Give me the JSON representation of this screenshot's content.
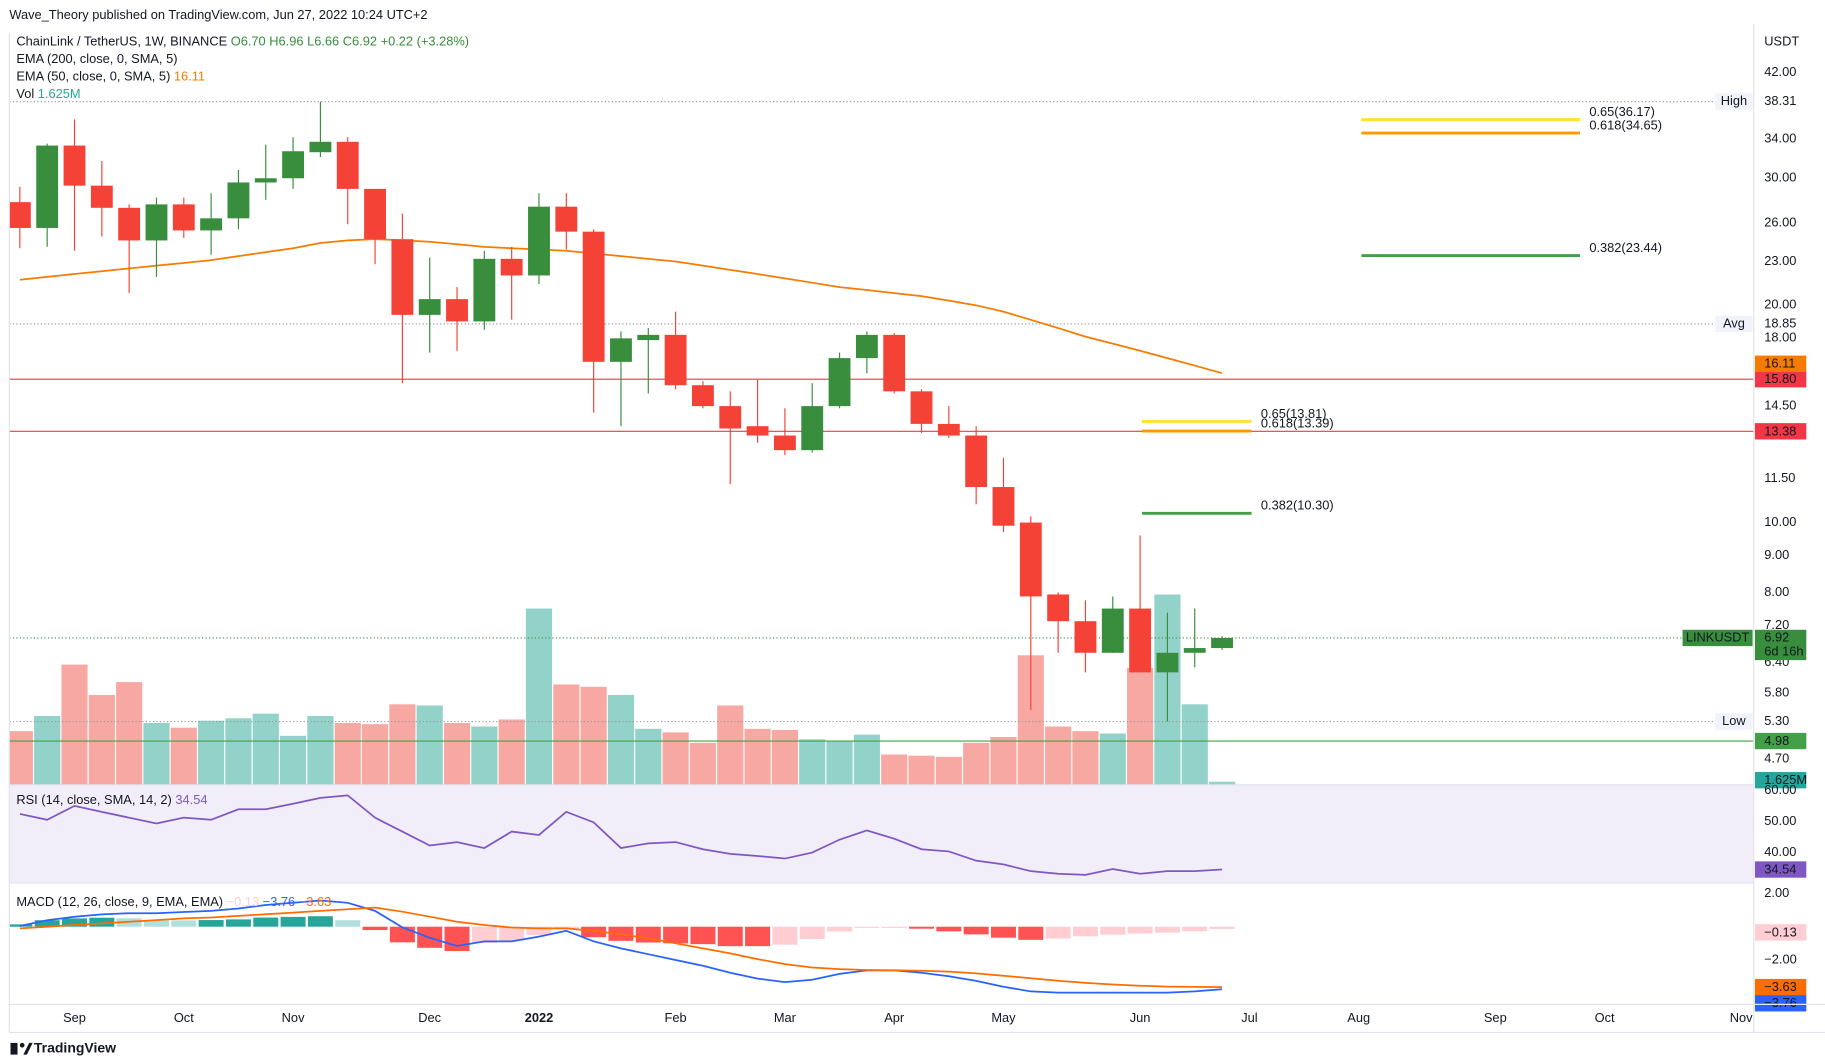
{
  "header": {
    "published": "Wave_Theory published on TradingView.com, Jun 27, 2022 10:24 UTC+2",
    "brand": "TradingView"
  },
  "chart_data": {
    "type": "candlestick",
    "symbol": "ChainLink / TetherUS, 1W, BINANCE",
    "ohlc_text": [
      "O6.70",
      "H6.96",
      "L6.66",
      "C6.92",
      "+0.22 (+3.28%)"
    ],
    "currency": "USDT",
    "categories": [
      null,
      null,
      null,
      null,
      null,
      null,
      null,
      null,
      null,
      null,
      null,
      null,
      null,
      null,
      null,
      null,
      null,
      null,
      null,
      null,
      null,
      null,
      null,
      null,
      null,
      null,
      null,
      null,
      null,
      null,
      null,
      null,
      null,
      null,
      null,
      null,
      null,
      null,
      null,
      null,
      null,
      null,
      null,
      null,
      null
    ],
    "xlim": [
      -0.385,
      63.46
    ],
    "xticks": [
      {
        "value": 2,
        "label": "Sep"
      },
      {
        "value": 6,
        "label": "Oct"
      },
      {
        "value": 10,
        "label": "Nov"
      },
      {
        "value": 15,
        "label": "Dec"
      },
      {
        "value": 19,
        "label": "2022"
      },
      {
        "value": 24,
        "label": "Feb"
      },
      {
        "value": 28,
        "label": "Mar"
      },
      {
        "value": 32,
        "label": "Apr"
      },
      {
        "value": 36,
        "label": "May"
      },
      {
        "value": 41,
        "label": "Jun"
      },
      {
        "value": 45,
        "label": "Jul"
      },
      {
        "value": 49,
        "label": "Aug"
      },
      {
        "value": 54,
        "label": "Sep"
      },
      {
        "value": 58,
        "label": "Oct"
      },
      {
        "value": 63,
        "label": "Nov"
      }
    ],
    "log_scale": true,
    "ylim": [
      4.33,
      47.7
    ],
    "yticks": [
      {
        "value": 42,
        "label": "42.00"
      },
      {
        "value": 34,
        "label": "34.00"
      },
      {
        "value": 30,
        "label": "30.00"
      },
      {
        "value": 26,
        "label": "26.00"
      },
      {
        "value": 23,
        "label": "23.00"
      },
      {
        "value": 20,
        "label": "20.00"
      },
      {
        "value": 18,
        "label": "18.00"
      },
      {
        "value": 14.5,
        "label": "14.50"
      },
      {
        "value": 11.5,
        "label": "11.50"
      },
      {
        "value": 10,
        "label": "10.00"
      },
      {
        "value": 9,
        "label": "9.00"
      },
      {
        "value": 8,
        "label": "8.00"
      },
      {
        "value": 7.2,
        "label": "7.20"
      },
      {
        "value": 6.4,
        "label": "6.40"
      },
      {
        "value": 5.8,
        "label": "5.80"
      },
      {
        "value": 4.7,
        "label": "4.70"
      }
    ],
    "up_color": "#388e3c",
    "down_color": "#f44336",
    "open": [
      27.8,
      25.6,
      33.3,
      29.3,
      27.3,
      24.6,
      27.6,
      25.4,
      26.4,
      29.6,
      30.0,
      32.6,
      33.7,
      29.0,
      24.7,
      19.4,
      20.4,
      19.0,
      23.2,
      22.0,
      27.4,
      25.3,
      16.7,
      17.9,
      18.2,
      15.5,
      14.5,
      13.6,
      13.2,
      12.6,
      14.5,
      16.9,
      18.2,
      15.2,
      13.7,
      13.2,
      11.2,
      10.0,
      7.95,
      7.3,
      6.6,
      7.6,
      6.2,
      6.6,
      6.7
    ],
    "high": [
      29.2,
      33.5,
      36.2,
      31.7,
      27.6,
      28.2,
      28.2,
      28.6,
      30.8,
      33.4,
      34.2,
      38.31,
      34.2,
      29.0,
      26.8,
      23.3,
      21.2,
      23.8,
      24.1,
      28.6,
      28.6,
      25.5,
      18.4,
      18.6,
      19.6,
      15.7,
      15.2,
      15.8,
      14.4,
      15.6,
      17.2,
      18.4,
      18.3,
      15.3,
      14.5,
      13.6,
      12.3,
      10.2,
      8.0,
      7.8,
      7.9,
      9.6,
      7.5,
      7.6,
      6.96
    ],
    "low": [
      24.0,
      24.1,
      23.8,
      24.9,
      20.8,
      21.9,
      24.8,
      23.5,
      25.5,
      28.0,
      29.0,
      32.1,
      25.9,
      22.8,
      15.6,
      17.2,
      17.3,
      18.5,
      19.1,
      21.4,
      23.9,
      14.2,
      13.6,
      15.1,
      15.3,
      14.4,
      11.3,
      12.9,
      12.4,
      12.5,
      14.4,
      16.1,
      15.1,
      13.3,
      13.1,
      10.6,
      9.7,
      5.5,
      6.6,
      6.2,
      6.6,
      6.2,
      5.3,
      6.3,
      6.66
    ],
    "close": [
      25.6,
      33.3,
      29.3,
      27.3,
      24.6,
      27.6,
      25.4,
      26.4,
      29.6,
      30.0,
      32.7,
      33.7,
      29.0,
      24.7,
      19.4,
      20.4,
      19.0,
      23.2,
      22.0,
      27.4,
      25.3,
      16.7,
      18.0,
      18.2,
      15.5,
      14.5,
      13.5,
      13.2,
      12.6,
      14.5,
      16.9,
      18.2,
      15.2,
      13.7,
      13.2,
      11.2,
      9.9,
      7.9,
      7.3,
      6.6,
      7.6,
      6.2,
      6.6,
      6.7,
      6.92
    ],
    "volume": {
      "name": "Vol",
      "label": "1.625M",
      "up_color": "#92d2c9",
      "down_color": "#f7a8a3",
      "values": [
        27600000,
        35400000,
        61800000,
        46200000,
        52800000,
        31800000,
        29400000,
        33000000,
        34200000,
        36600000,
        25200000,
        35400000,
        31800000,
        31200000,
        41400000,
        40800000,
        31800000,
        30000000,
        33600000,
        90600000,
        51600000,
        50400000,
        46200000,
        28800000,
        27000000,
        21600000,
        40800000,
        28800000,
        28200000,
        23400000,
        22800000,
        25800000,
        15600000,
        15000000,
        14400000,
        21600000,
        24600000,
        66600000,
        30000000,
        27600000,
        26400000,
        60000000,
        97800000,
        41400000,
        1625000
      ]
    },
    "ema200": {
      "name": "EMA (200, close, 0, SMA, 5)"
    },
    "ema50": {
      "name": "EMA (50, close, 0, SMA, 5)",
      "label": "16.11",
      "color": "#f57c00",
      "values": [
        21.7,
        21.9,
        22.1,
        22.3,
        22.5,
        22.7,
        22.9,
        23.1,
        23.4,
        23.7,
        24.0,
        24.4,
        24.6,
        24.7,
        24.6,
        24.5,
        24.3,
        24.1,
        24.0,
        23.9,
        23.8,
        23.6,
        23.4,
        23.2,
        23.0,
        22.7,
        22.4,
        22.1,
        21.8,
        21.5,
        21.2,
        21.0,
        20.8,
        20.6,
        20.3,
        20.0,
        19.6,
        19.1,
        18.6,
        18.1,
        17.7,
        17.3,
        16.9,
        16.5,
        16.11
      ]
    },
    "levels": [
      {
        "label": "High",
        "value": 38.31,
        "value_label": "38.31"
      },
      {
        "label": "Avg",
        "value": 18.85,
        "value_label": "18.85"
      },
      {
        "label": "Low",
        "value": 5.3,
        "value_label": "5.30"
      }
    ],
    "lines": [
      {
        "value": 15.8,
        "label": "15.80",
        "color": "#f23645"
      },
      {
        "value": 13.38,
        "label": "13.38",
        "color": "#f23645"
      },
      {
        "value": 4.98,
        "label": "4.98",
        "color": "#43a047"
      }
    ],
    "last_price": {
      "symbol": "LINKUSDT",
      "value": 6.92,
      "label": "6.92",
      "countdown": "6d 16h",
      "color": "#388e3c"
    },
    "fib": [
      {
        "levels": [
          {
            "value": 36.17,
            "label": "0.65(36.17)",
            "color": "#ffe033"
          },
          {
            "value": 34.65,
            "label": "0.618(34.65)",
            "color": "#ff9800"
          },
          {
            "value": 23.44,
            "label": "0.382(23.44)",
            "color": "#43a047"
          }
        ]
      },
      {
        "levels": [
          {
            "value": 13.81,
            "label": "0.65(13.81)",
            "color": "#ffe033"
          },
          {
            "value": 13.39,
            "label": "0.618(13.39)",
            "color": "#ff9800"
          },
          {
            "value": 10.3,
            "label": "0.382(10.30)",
            "color": "#43a047"
          }
        ]
      }
    ],
    "rsi": {
      "name": "RSI (14, close, SMA, 14, 2)",
      "label": "34.54",
      "color": "#7e57c2",
      "ylim": [
        30.2,
        61.9
      ],
      "yticks": [
        {
          "value": 60,
          "label": "60.00"
        },
        {
          "value": 50,
          "label": "50.00"
        },
        {
          "value": 40,
          "label": "40.00"
        }
      ],
      "values": [
        52.5,
        50.6,
        55.1,
        53.2,
        51.3,
        49.4,
        51.3,
        50.6,
        54.0,
        54.0,
        55.8,
        57.7,
        58.5,
        51.3,
        46.8,
        42.3,
        43.4,
        41.5,
        46.8,
        45.7,
        53.2,
        49.8,
        41.5,
        43.0,
        43.4,
        41.1,
        39.6,
        38.9,
        38.1,
        40.0,
        44.2,
        47.2,
        44.5,
        41.1,
        40.4,
        37.4,
        36.2,
        34.0,
        33.2,
        32.8,
        34.7,
        33.2,
        34.0,
        34.0,
        34.54
      ]
    },
    "macd": {
      "name": "MACD (12, 26, close, 9, EMA, EMA)",
      "ylim": [
        -4.67,
        2.63
      ],
      "yticks": [
        {
          "value": 2,
          "label": "2.00"
        },
        {
          "value": -2,
          "label": "−2.00"
        }
      ],
      "macd": {
        "label": "−3.76",
        "color": "#2962ff",
        "values": [
          0.04,
          0.39,
          0.6,
          0.74,
          0.81,
          0.81,
          0.88,
          0.95,
          1.09,
          1.3,
          1.44,
          1.58,
          1.44,
          0.95,
          -0.04,
          -0.67,
          -1.16,
          -0.88,
          -0.88,
          -0.6,
          -0.25,
          -0.88,
          -1.3,
          -1.65,
          -2.0,
          -2.35,
          -2.77,
          -3.12,
          -3.33,
          -3.19,
          -2.84,
          -2.63,
          -2.63,
          -2.77,
          -2.98,
          -3.26,
          -3.61,
          -3.89,
          -3.96,
          -3.96,
          -3.96,
          -3.96,
          -3.96,
          -3.89,
          -3.76
        ]
      },
      "signal": {
        "label": "−3.63",
        "color": "#ff6d00",
        "values": [
          -0.1,
          0.0,
          0.1,
          0.2,
          0.3,
          0.4,
          0.5,
          0.55,
          0.65,
          0.75,
          0.85,
          0.95,
          1.05,
          1.15,
          0.9,
          0.6,
          0.3,
          0.1,
          -0.05,
          -0.1,
          -0.1,
          -0.25,
          -0.45,
          -0.7,
          -1.0,
          -1.3,
          -1.6,
          -1.95,
          -2.25,
          -2.45,
          -2.55,
          -2.6,
          -2.62,
          -2.65,
          -2.7,
          -2.8,
          -2.95,
          -3.1,
          -3.25,
          -3.38,
          -3.48,
          -3.55,
          -3.6,
          -3.62,
          -3.63
        ]
      },
      "histogram": {
        "label": "−0.13",
        "values": [
          0.14,
          0.39,
          0.5,
          0.54,
          0.51,
          0.41,
          0.38,
          0.4,
          0.44,
          0.55,
          0.59,
          0.63,
          0.39,
          -0.2,
          -0.94,
          -1.27,
          -1.46,
          -0.98,
          -0.83,
          -0.5,
          -0.15,
          -0.63,
          -0.85,
          -0.95,
          -1.0,
          -1.05,
          -1.17,
          -1.17,
          -1.08,
          -0.74,
          -0.29,
          -0.03,
          -0.01,
          -0.12,
          -0.28,
          -0.46,
          -0.66,
          -0.79,
          -0.71,
          -0.58,
          -0.48,
          -0.41,
          -0.36,
          -0.27,
          -0.13
        ]
      }
    }
  }
}
